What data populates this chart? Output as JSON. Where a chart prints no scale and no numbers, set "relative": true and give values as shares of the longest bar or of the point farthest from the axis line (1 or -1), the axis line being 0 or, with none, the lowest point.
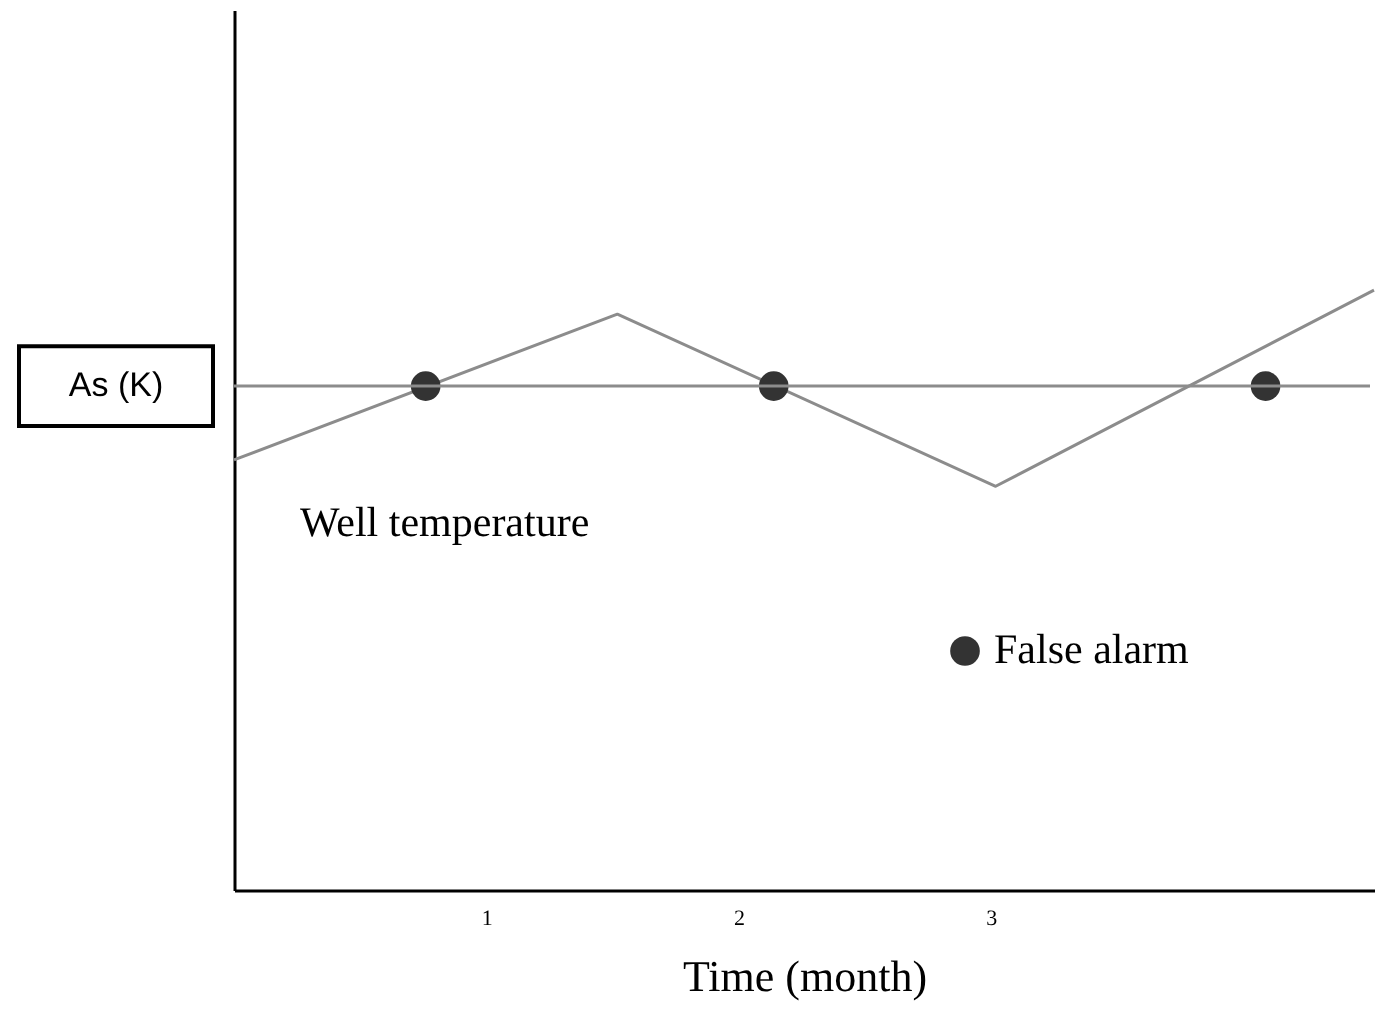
{
  "chart_data": {
    "type": "line",
    "relative": true,
    "xlabel": "Time (month)",
    "xlim": [
      0,
      4.52
    ],
    "xticks": [
      1,
      2,
      3
    ],
    "tick_labels": "x",
    "grid": false,
    "legend": "bottom right",
    "series": [
      {
        "name": "Well temperature",
        "color": "#8c8c8c",
        "x": [
          0,
          1.52,
          3.02,
          4.52
        ],
        "values": [
          0.717,
          0.96,
          0.673,
          1
        ]
      },
      {
        "name": "False alarm",
        "type": "scatter",
        "marker": "circle",
        "color": "#333333",
        "x": [
          0.76,
          2.14,
          4.09
        ],
        "values": [
          0.84,
          0.84,
          0.84
        ]
      }
    ],
    "ref_lines": [
      {
        "axis": "y",
        "value": 0.84,
        "label": "As (K)",
        "color": "#8c8c8c"
      }
    ]
  }
}
